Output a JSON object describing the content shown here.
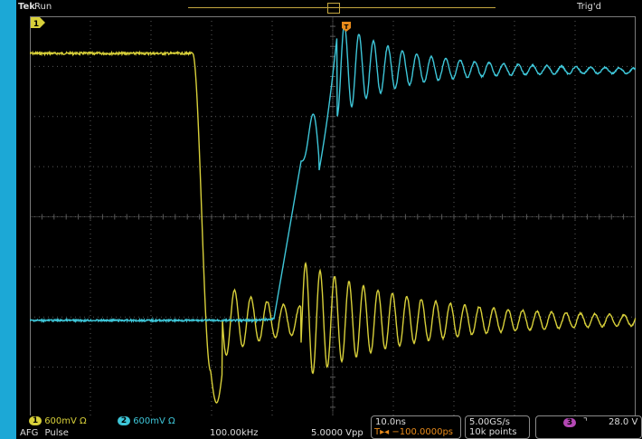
{
  "header": {
    "brand": "Tek",
    "run_state": "Run",
    "trigger_status": "Trig'd",
    "trigger_marker": "T"
  },
  "colors": {
    "ch1": "#d8d03a",
    "ch2": "#3ec6d8",
    "ch3": "#b548b5",
    "trigger": "#e88a1a",
    "grid": "#5a5a5a",
    "frame": "#1ca8d6"
  },
  "channels": [
    {
      "num": "1",
      "scale": "600mV Ω",
      "color": "#d8d03a"
    },
    {
      "num": "2",
      "scale": "600mV Ω",
      "color": "#3ec6d8"
    }
  ],
  "afg": {
    "label": "AFG",
    "waveform": "Pulse",
    "frequency": "100.00kHz",
    "amplitude": "5.0000 Vpp"
  },
  "timebase": {
    "scale": "10.0ns",
    "position": "−100.0000ps"
  },
  "acquisition": {
    "sample_rate": "5.00GS/s",
    "record_length": "10k points"
  },
  "trigger": {
    "source": "3",
    "slope_icon": "falling-edge-icon",
    "level": "28.0 V"
  },
  "ground_marker": "1"
}
